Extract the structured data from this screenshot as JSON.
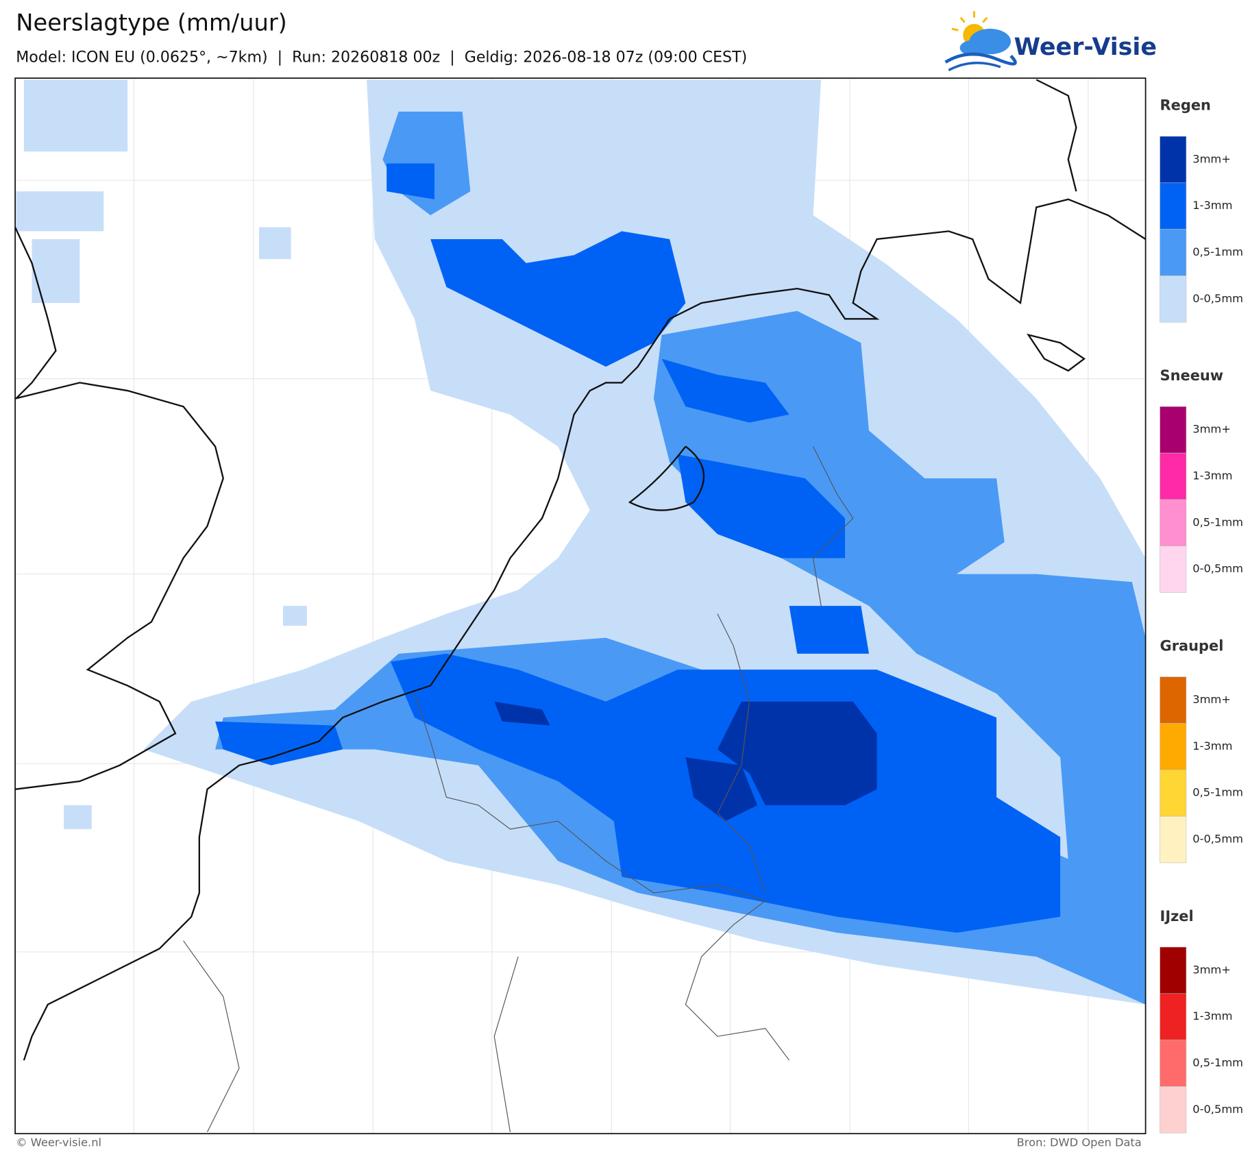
{
  "header": {
    "title": "Neerslagtype (mm/uur)",
    "subtitle": "Model: ICON EU (0.0625°, ~7km)  |  Run: 20260818 00z  |  Geldig: 2026-08-18 07z (09:00 CEST)",
    "logo": "Weer-Visie"
  },
  "legend": [
    {
      "title": "Regen",
      "classes": [
        {
          "label": "3mm+",
          "color": "#0033aa"
        },
        {
          "label": "1-3mm",
          "color": "#0062f5"
        },
        {
          "label": "0,5-1mm",
          "color": "#4a9af5"
        },
        {
          "label": "0-0,5mm",
          "color": "#c7def9"
        }
      ]
    },
    {
      "title": "Sneeuw",
      "classes": [
        {
          "label": "3mm+",
          "color": "#a8006e"
        },
        {
          "label": "1-3mm",
          "color": "#ff2aa8"
        },
        {
          "label": "0,5-1mm",
          "color": "#ff8fcf"
        },
        {
          "label": "0-0,5mm",
          "color": "#ffd6ee"
        }
      ]
    },
    {
      "title": "Graupel",
      "classes": [
        {
          "label": "3mm+",
          "color": "#dd6600"
        },
        {
          "label": "1-3mm",
          "color": "#ffaa00"
        },
        {
          "label": "0,5-1mm",
          "color": "#ffd633"
        },
        {
          "label": "0-0,5mm",
          "color": "#fff2c0"
        }
      ]
    },
    {
      "title": "IJzel",
      "classes": [
        {
          "label": "3mm+",
          "color": "#a00000"
        },
        {
          "label": "1-3mm",
          "color": "#ee2222"
        },
        {
          "label": "0,5-1mm",
          "color": "#ff6b6b"
        },
        {
          "label": "0-0,5mm",
          "color": "#ffd0d0"
        }
      ]
    }
  ],
  "footer": {
    "left": "© Weer-visie.nl",
    "right": "Bron: DWD Open Data"
  }
}
